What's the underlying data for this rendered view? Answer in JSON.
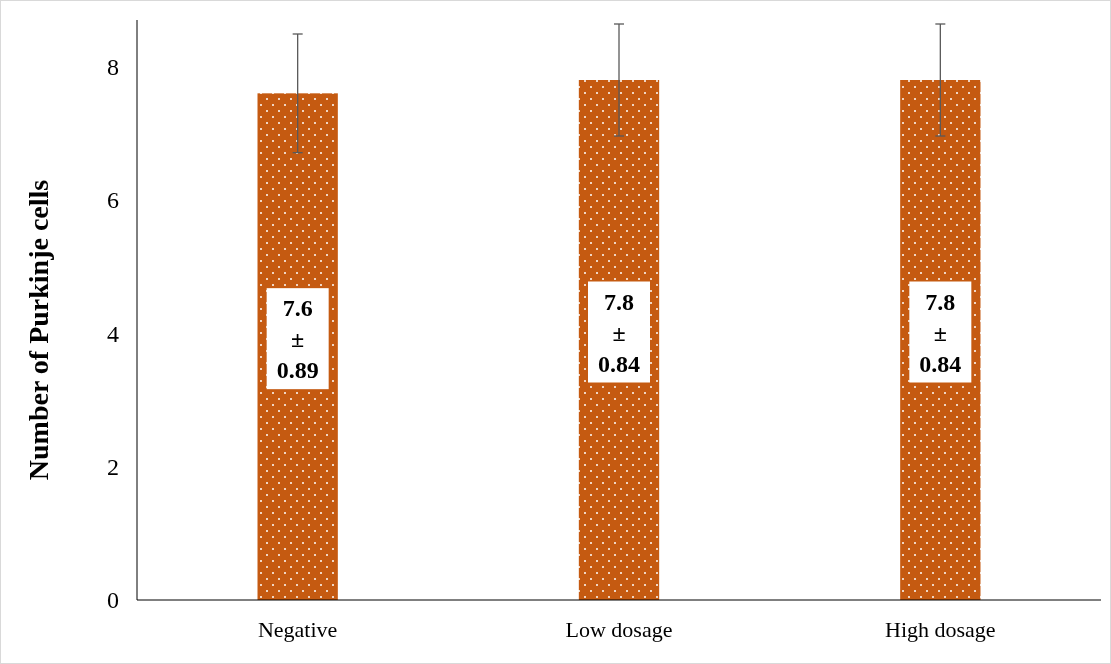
{
  "chart_data": {
    "type": "bar",
    "ylabel": "Number of Purkinje cells",
    "categories": [
      "Negative",
      "Low dosage",
      "High dosage"
    ],
    "values": [
      7.6,
      7.8,
      7.8
    ],
    "errors": [
      0.89,
      0.84,
      0.84
    ],
    "value_labels": [
      "7.6\n±\n0.89",
      "7.8\n±\n0.84",
      "7.8\n±\n0.84"
    ],
    "color": "#c55a11",
    "ylim": [
      0,
      8.7
    ],
    "yticks": [
      0,
      2,
      4,
      6,
      8
    ],
    "grid": false
  }
}
